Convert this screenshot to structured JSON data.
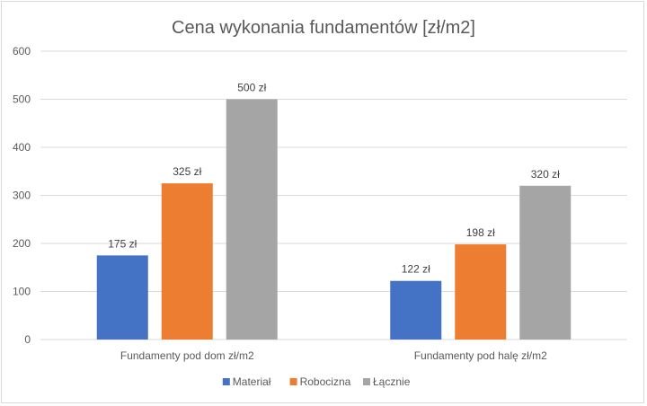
{
  "chart_data": {
    "type": "bar",
    "title": "Cena wykonania fundamentów [zł/m2]",
    "categories": [
      "Fundamenty pod dom zł/m2",
      "Fundamenty pod halę zł/m2"
    ],
    "series": [
      {
        "name": "Materiał",
        "values": [
          175,
          122
        ],
        "labels": [
          "175 zł",
          "122 zł"
        ],
        "color": "#4472c4"
      },
      {
        "name": "Robocizna",
        "values": [
          325,
          198
        ],
        "labels": [
          "325 zł",
          "198 zł"
        ],
        "color": "#ed7d31"
      },
      {
        "name": "Łącznie",
        "values": [
          500,
          320
        ],
        "labels": [
          "500 zł",
          "320 zł"
        ],
        "color": "#a5a5a5"
      }
    ],
    "ylim": [
      0,
      600
    ],
    "yticks": [
      0,
      100,
      200,
      300,
      400,
      500,
      600
    ],
    "grid": true,
    "legend": "bottom",
    "xlabel": "",
    "ylabel": ""
  }
}
